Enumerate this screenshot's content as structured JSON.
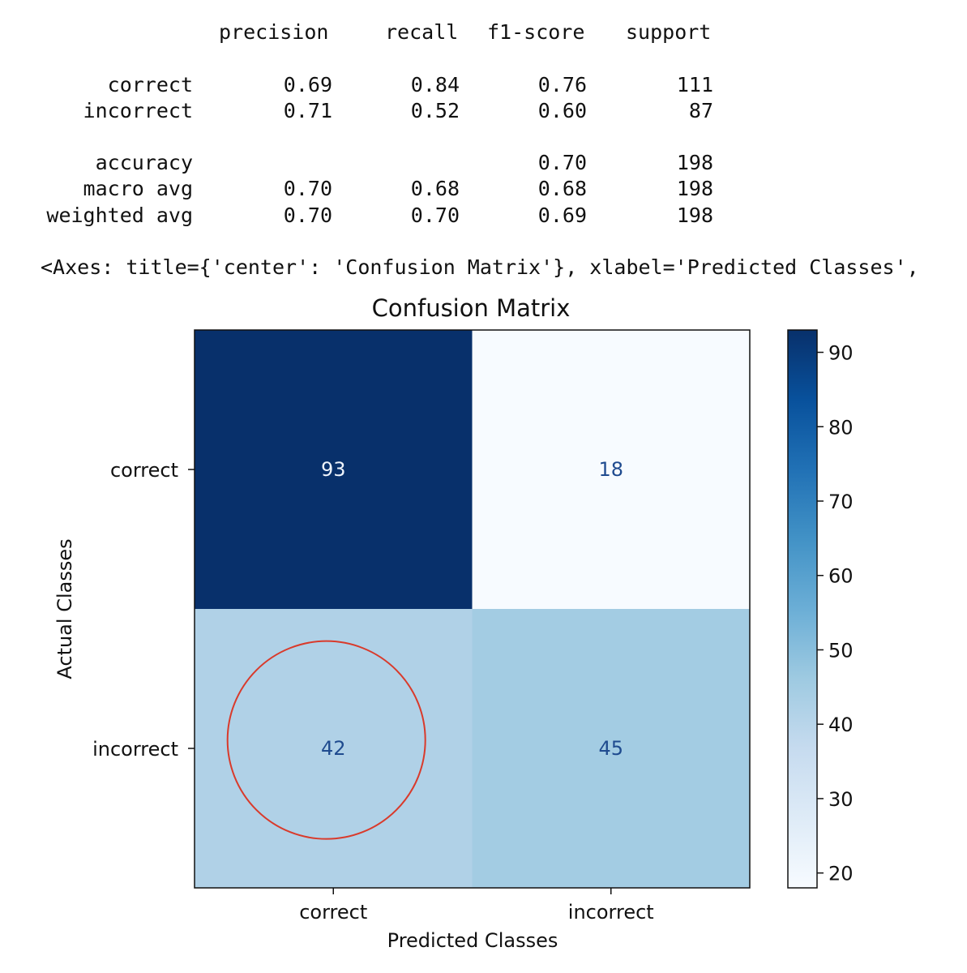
{
  "report": {
    "headers": [
      "precision",
      "recall",
      "f1-score",
      "support"
    ],
    "rows": [
      {
        "label": "correct",
        "precision": "0.69",
        "recall": "0.84",
        "f1": "0.76",
        "support": "111"
      },
      {
        "label": "incorrect",
        "precision": "0.71",
        "recall": "0.52",
        "f1": "0.60",
        "support": "87"
      },
      {
        "label": "accuracy",
        "precision": "",
        "recall": "",
        "f1": "0.70",
        "support": "198"
      },
      {
        "label": "macro avg",
        "precision": "0.70",
        "recall": "0.68",
        "f1": "0.68",
        "support": "198"
      },
      {
        "label": "weighted avg",
        "precision": "0.70",
        "recall": "0.70",
        "f1": "0.69",
        "support": "198"
      }
    ]
  },
  "axes_repr": "<Axes: title={'center': 'Confusion Matrix'}, xlabel='Predicted Classes',",
  "chart_data": {
    "type": "heatmap",
    "title": "Confusion Matrix",
    "xlabel": "Predicted Classes",
    "ylabel": "Actual Classes",
    "x_categories": [
      "correct",
      "incorrect"
    ],
    "y_categories": [
      "correct",
      "incorrect"
    ],
    "matrix": [
      [
        93,
        18
      ],
      [
        42,
        45
      ]
    ],
    "colormap": "Blues",
    "vmin": 18,
    "vmax": 93,
    "colorbar_ticks": [
      20,
      30,
      40,
      50,
      60,
      70,
      80,
      90
    ],
    "highlight": {
      "row": 1,
      "col": 0,
      "shape": "circle",
      "color": "#d93a2b"
    }
  },
  "colors": {
    "annot_dark_bg": "#eef3fb",
    "annot_light_bg": "#1f4b8f",
    "highlight": "#d93a2b"
  }
}
